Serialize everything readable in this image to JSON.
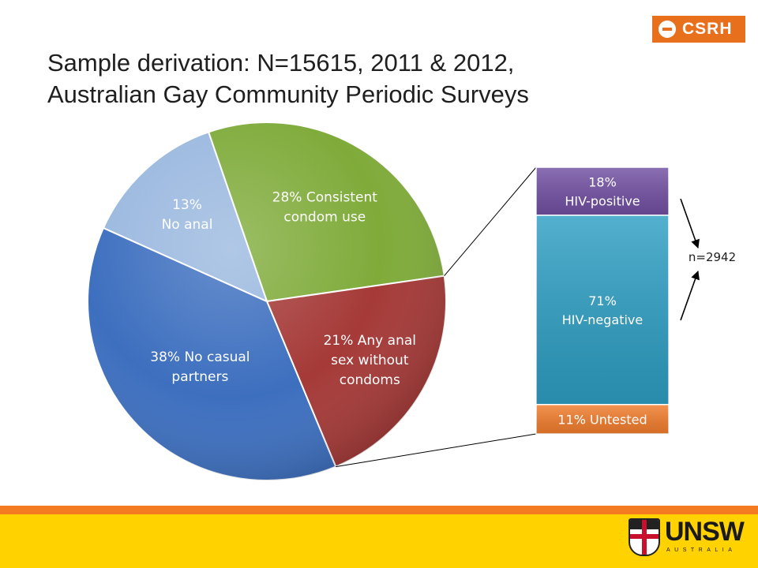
{
  "title": {
    "line1": "Sample derivation: N=15615, 2011 & 2012,",
    "line2": "Australian Gay Community Periodic Surveys"
  },
  "logos": {
    "csrh": "CSRH",
    "unsw": "UNSW",
    "unsw_sub": "AUSTRALIA"
  },
  "colors": {
    "footer_orange": "#f47b20",
    "footer_yellow": "#ffd200",
    "csrh_orange": "#e8701d"
  },
  "chart_data": [
    {
      "type": "pie",
      "title": "",
      "slices": [
        {
          "label_lines": [
            "28% Consistent",
            "condom use"
          ],
          "value": 28,
          "color": "#7fab3a"
        },
        {
          "label_lines": [
            "21% Any anal",
            "sex without",
            "condoms"
          ],
          "value": 21,
          "color": "#a53a38"
        },
        {
          "label_lines": [
            "38% No casual",
            "partners"
          ],
          "value": 38,
          "color": "#3d6fbf"
        },
        {
          "label_lines": [
            "13%",
            "No anal"
          ],
          "value": 13,
          "color": "#9ab8df"
        }
      ]
    },
    {
      "type": "bar",
      "stacked": true,
      "title": "",
      "n_label": "n=2942",
      "segments": [
        {
          "label_lines": [
            "18%",
            "HIV-positive"
          ],
          "value": 18,
          "color": "#7250a3"
        },
        {
          "label_lines": [
            "71%",
            "HIV-negative"
          ],
          "value": 71,
          "color": "#2e9fc4"
        },
        {
          "label_lines": [
            "11% Untested"
          ],
          "value": 11,
          "color": "#f27d2c"
        }
      ]
    }
  ]
}
